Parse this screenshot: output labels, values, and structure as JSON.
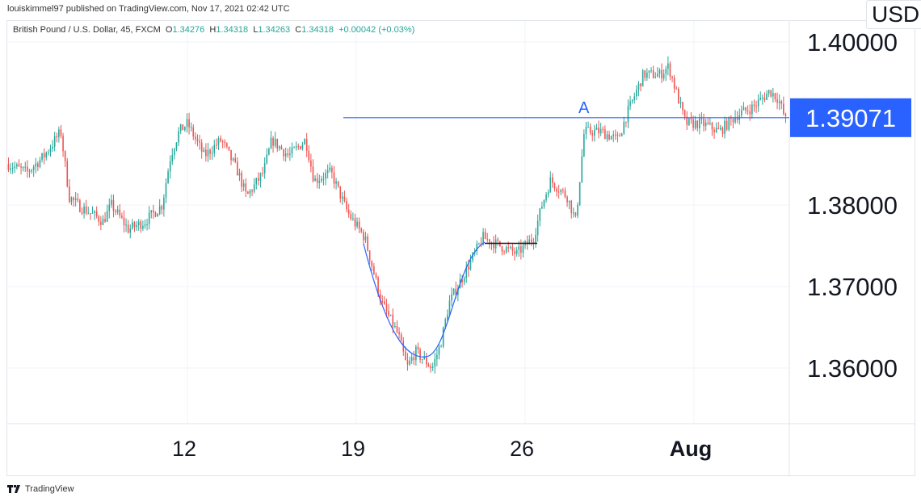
{
  "header": {
    "published": "louiskimmel97 published on TradingView.com, Nov 17, 2021 02:42 UTC"
  },
  "legend": {
    "symbol": "British Pound / U.S. Dollar, 45, FXCM",
    "o_label": "O",
    "o": "1.34276",
    "h_label": "H",
    "h": "1.34318",
    "l_label": "L",
    "l": "1.34263",
    "c_label": "C",
    "c": "1.34318",
    "change": "+0.00042 (+0.03%)"
  },
  "currency": "USD",
  "footer": {
    "brand": "TradingView"
  },
  "colors": {
    "up": "#26a69a",
    "down": "#ef5350",
    "drawing": "#2962ff",
    "price_tag": "#2962ff"
  },
  "chart_data": {
    "type": "candlestick",
    "symbol": "GBPUSD",
    "interval": "45",
    "ylim": [
      1.3535,
      1.4035
    ],
    "y_ticks": [
      "1.36000",
      "1.37000",
      "1.38000",
      "1.40000"
    ],
    "x_ticks": [
      {
        "date": "Jul 12",
        "label": "12"
      },
      {
        "date": "Jul 19",
        "label": "19"
      },
      {
        "date": "Jul 26",
        "label": "26"
      },
      {
        "date": "Aug 2",
        "label": "Aug"
      }
    ],
    "last_price": "1.39071",
    "horizontal_level": {
      "price": 1.39071,
      "label": "A"
    },
    "range_line": {
      "price": 1.3753
    },
    "price_path": [
      [
        "Jul 4 18:00",
        1.385
      ],
      [
        "Jul 5 06:00",
        1.384
      ],
      [
        "Jul 5 18:00",
        1.386
      ],
      [
        "Jul 6 06:00",
        1.389
      ],
      [
        "Jul 6 12:00",
        1.381
      ],
      [
        "Jul 6 18:00",
        1.38
      ],
      [
        "Jul 7 12:00",
        1.378
      ],
      [
        "Jul 7 18:00",
        1.38
      ],
      [
        "Jul 8 06:00",
        1.377
      ],
      [
        "Jul 8 18:00",
        1.378
      ],
      [
        "Jul 9 06:00",
        1.38
      ],
      [
        "Jul 9 12:00",
        1.386
      ],
      [
        "Jul 9 18:00",
        1.389
      ],
      [
        "Jul 12 00:00",
        1.39
      ],
      [
        "Jul 12 12:00",
        1.386
      ],
      [
        "Jul 13 00:00",
        1.388
      ],
      [
        "Jul 13 12:00",
        1.384
      ],
      [
        "Jul 13 18:00",
        1.381
      ],
      [
        "Jul 14 06:00",
        1.384
      ],
      [
        "Jul 14 12:00",
        1.388
      ],
      [
        "Jul 15 00:00",
        1.386
      ],
      [
        "Jul 15 12:00",
        1.388
      ],
      [
        "Jul 15 18:00",
        1.383
      ],
      [
        "Jul 16 06:00",
        1.384
      ],
      [
        "Jul 16 18:00",
        1.379
      ],
      [
        "Jul 19 06:00",
        1.376
      ],
      [
        "Jul 19 18:00",
        1.368
      ],
      [
        "Jul 20 06:00",
        1.364
      ],
      [
        "Jul 20 12:00",
        1.36
      ],
      [
        "Jul 20 18:00",
        1.362
      ],
      [
        "Jul 21 06:00",
        1.36
      ],
      [
        "Jul 21 12:00",
        1.363
      ],
      [
        "Jul 21 18:00",
        1.368
      ],
      [
        "Jul 22 06:00",
        1.372
      ],
      [
        "Jul 22 18:00",
        1.376
      ],
      [
        "Jul 23 06:00",
        1.375
      ],
      [
        "Jul 23 18:00",
        1.374
      ],
      [
        "Jul 26 06:00",
        1.376
      ],
      [
        "Jul 26 12:00",
        1.38
      ],
      [
        "Jul 26 18:00",
        1.383
      ],
      [
        "Jul 27 06:00",
        1.381
      ],
      [
        "Jul 27 12:00",
        1.378
      ],
      [
        "Jul 27 18:00",
        1.389
      ],
      [
        "Jul 28 06:00",
        1.389
      ],
      [
        "Jul 28 18:00",
        1.388
      ],
      [
        "Jul 29 00:00",
        1.391
      ],
      [
        "Jul 29 12:00",
        1.396
      ],
      [
        "Jul 30 00:00",
        1.396
      ],
      [
        "Jul 30 06:00",
        1.397
      ],
      [
        "Jul 30 18:00",
        1.39
      ],
      [
        "Aug 2 06:00",
        1.39
      ],
      [
        "Aug 2 18:00",
        1.389
      ],
      [
        "Aug 3 06:00",
        1.391
      ],
      [
        "Aug 3 18:00",
        1.392
      ],
      [
        "Aug 4 06:00",
        1.394
      ],
      [
        "Aug 4 12:00",
        1.393
      ],
      [
        "Aug 4 18:00",
        1.39
      ]
    ]
  }
}
